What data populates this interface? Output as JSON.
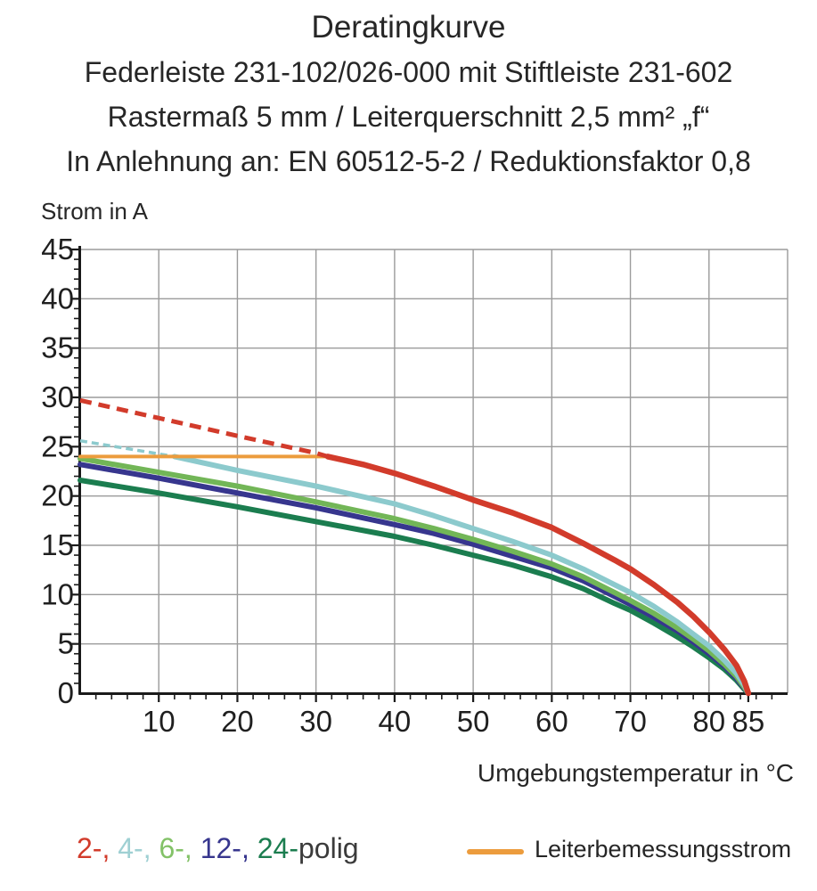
{
  "title": {
    "line1": "Deratingkurve",
    "line2": "Federleiste 231-102/026-000 mit Stiftleiste 231-602",
    "line3": "Rastermaß 5 mm / Leiterquerschnitt 2,5 mm² „f“",
    "line4": "In Anlehnung an: EN 60512-5-2 / Reduktionsfaktor 0,8"
  },
  "chart_data": {
    "type": "line",
    "title": "Deratingkurve",
    "xlabel": "Umgebungstemperatur in °C",
    "ylabel": "Strom in A",
    "xlim": [
      0,
      90
    ],
    "ylim": [
      0,
      45
    ],
    "x_tick_labels": [
      10,
      20,
      30,
      40,
      50,
      60,
      70,
      80,
      85
    ],
    "y_tick_labels": [
      45,
      40,
      35,
      30,
      25,
      20,
      15,
      10,
      5,
      0
    ],
    "x_gridlines": [
      10,
      20,
      30,
      40,
      50,
      60,
      70,
      80,
      90
    ],
    "y_gridlines": [
      5,
      10,
      15,
      20,
      25,
      30,
      35,
      40,
      45
    ],
    "x_minor_step": 2,
    "y_minor_step": 1,
    "grid": true,
    "grid_color": "#9b9b9b",
    "axis_color": "#1a1a1a",
    "rated_current_A": 24,
    "series": [
      {
        "name": "24-polig",
        "color": "#1b7d4f",
        "segments": [
          {
            "style": "solid",
            "width": 6,
            "points": [
              [
                0,
                21.6
              ],
              [
                10,
                20.3
              ],
              [
                20,
                18.9
              ],
              [
                30,
                17.4
              ],
              [
                40,
                15.9
              ],
              [
                45,
                15.0
              ],
              [
                50,
                14.0
              ],
              [
                55,
                13.0
              ],
              [
                60,
                11.8
              ],
              [
                64,
                10.6
              ],
              [
                68,
                9.1
              ],
              [
                70,
                8.4
              ],
              [
                73,
                7.1
              ],
              [
                76,
                5.7
              ],
              [
                78,
                4.7
              ],
              [
                80,
                3.6
              ],
              [
                82,
                2.4
              ],
              [
                83.5,
                1.3
              ],
              [
                84.5,
                0.4
              ],
              [
                85,
                0
              ]
            ]
          }
        ]
      },
      {
        "name": "12-polig",
        "color": "#37368e",
        "segments": [
          {
            "style": "solid",
            "width": 6,
            "points": [
              [
                0,
                23.2
              ],
              [
                10,
                21.8
              ],
              [
                20,
                20.3
              ],
              [
                30,
                18.8
              ],
              [
                40,
                17.1
              ],
              [
                45,
                16.2
              ],
              [
                50,
                15.1
              ],
              [
                55,
                13.9
              ],
              [
                60,
                12.7
              ],
              [
                64,
                11.4
              ],
              [
                68,
                9.8
              ],
              [
                70,
                9.0
              ],
              [
                73,
                7.7
              ],
              [
                76,
                6.3
              ],
              [
                78,
                5.2
              ],
              [
                80,
                4.0
              ],
              [
                82,
                2.7
              ],
              [
                83.5,
                1.5
              ],
              [
                84.5,
                0.5
              ],
              [
                85,
                0
              ]
            ]
          }
        ]
      },
      {
        "name": "6-polig",
        "color": "#72b657",
        "segments": [
          {
            "style": "solid",
            "width": 6,
            "points": [
              [
                0,
                23.8
              ],
              [
                10,
                22.4
              ],
              [
                20,
                21.0
              ],
              [
                30,
                19.4
              ],
              [
                40,
                17.7
              ],
              [
                45,
                16.7
              ],
              [
                50,
                15.6
              ],
              [
                55,
                14.4
              ],
              [
                60,
                13.1
              ],
              [
                64,
                11.8
              ],
              [
                68,
                10.2
              ],
              [
                70,
                9.4
              ],
              [
                73,
                8.1
              ],
              [
                76,
                6.6
              ],
              [
                78,
                5.5
              ],
              [
                80,
                4.3
              ],
              [
                82,
                2.9
              ],
              [
                83.5,
                1.7
              ],
              [
                84.5,
                0.6
              ],
              [
                85,
                0
              ]
            ]
          }
        ]
      },
      {
        "name": "4-polig",
        "color": "#8ccacd",
        "segments": [
          {
            "style": "dashed",
            "width": 3.5,
            "dash": "8 5",
            "points": [
              [
                0,
                25.6
              ],
              [
                6,
                24.8
              ],
              [
                12,
                24.0
              ]
            ]
          },
          {
            "style": "solid",
            "width": 6,
            "points": [
              [
                12,
                24.0
              ],
              [
                20,
                22.6
              ],
              [
                30,
                21.0
              ],
              [
                40,
                19.2
              ],
              [
                45,
                18.0
              ],
              [
                50,
                16.7
              ],
              [
                55,
                15.4
              ],
              [
                60,
                14.0
              ],
              [
                64,
                12.6
              ],
              [
                68,
                11.0
              ],
              [
                70,
                10.2
              ],
              [
                73,
                8.8
              ],
              [
                76,
                7.2
              ],
              [
                78,
                6.0
              ],
              [
                80,
                4.8
              ],
              [
                82,
                3.3
              ],
              [
                83.5,
                2.0
              ],
              [
                84.5,
                0.8
              ],
              [
                85,
                0
              ]
            ]
          }
        ]
      },
      {
        "name": "Leiterbemessungsstrom",
        "color": "#ec9c3d",
        "segments": [
          {
            "style": "solid",
            "width": 4,
            "points": [
              [
                0,
                24
              ],
              [
                31.5,
                24
              ]
            ]
          }
        ]
      },
      {
        "name": "2-polig",
        "color": "#d23b2b",
        "segments": [
          {
            "style": "dashed",
            "width": 5,
            "dash": "13 8",
            "points": [
              [
                0,
                29.7
              ],
              [
                10,
                27.9
              ],
              [
                20,
                26.1
              ],
              [
                30,
                24.35
              ],
              [
                31.5,
                24.0
              ]
            ]
          },
          {
            "style": "solid",
            "width": 6.5,
            "points": [
              [
                31.5,
                24.0
              ],
              [
                36,
                23.2
              ],
              [
                40,
                22.3
              ],
              [
                45,
                21.0
              ],
              [
                50,
                19.6
              ],
              [
                55,
                18.3
              ],
              [
                60,
                16.8
              ],
              [
                64,
                15.2
              ],
              [
                68,
                13.5
              ],
              [
                70,
                12.6
              ],
              [
                73,
                11.0
              ],
              [
                76,
                9.2
              ],
              [
                78,
                7.8
              ],
              [
                80,
                6.2
              ],
              [
                82,
                4.4
              ],
              [
                83.5,
                2.8
              ],
              [
                84.5,
                1.2
              ],
              [
                85,
                0
              ]
            ]
          }
        ]
      }
    ]
  },
  "legend": {
    "poles": {
      "parts": [
        {
          "id": "2-polig",
          "text": "2-, ",
          "color": "#d23b2b"
        },
        {
          "id": "4-polig",
          "text": "4-, ",
          "color": "#9fd0d3"
        },
        {
          "id": "6-polig",
          "text": "6-, ",
          "color": "#83c268"
        },
        {
          "id": "12-polig",
          "text": "12-, ",
          "color": "#37368e"
        },
        {
          "id": "24-polig",
          "text": "24-",
          "color": "#1b7d4f"
        },
        {
          "id": "polig",
          "text": "polig",
          "color": "#3b3b3b"
        }
      ]
    },
    "rated_current": {
      "label": "Leiterbemessungsstrom",
      "color": "#ec9c3d"
    }
  }
}
